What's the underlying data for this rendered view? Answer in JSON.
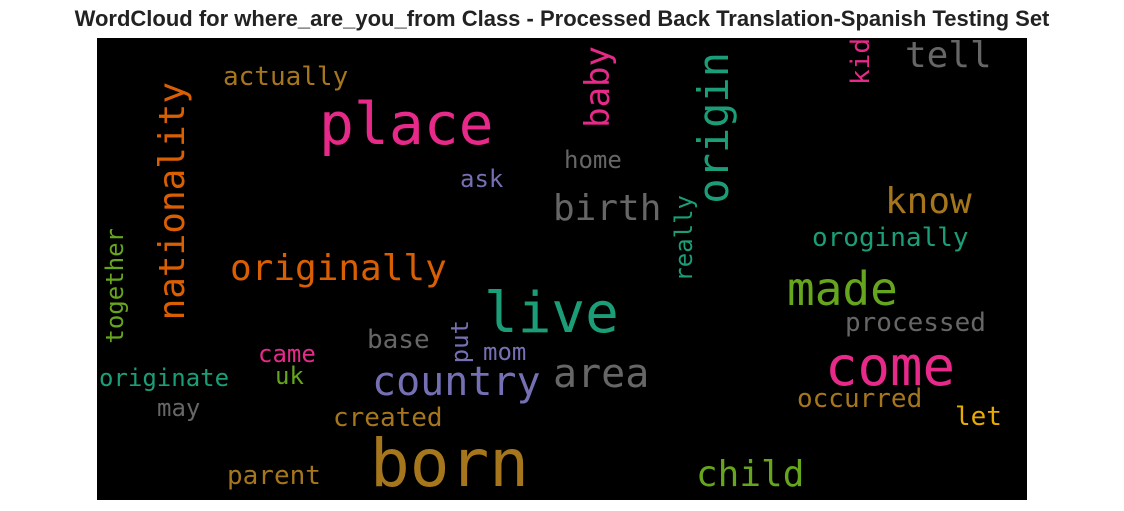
{
  "title": "WordCloud for where_are_you_from Class - Processed Back Translation-Spanish Testing Set",
  "chart_data": {
    "type": "wordcloud",
    "background": "#000000",
    "words": [
      {
        "text": "place",
        "color": "#e7298a",
        "vertical": false
      },
      {
        "text": "born",
        "color": "#a6761d",
        "vertical": false
      },
      {
        "text": "live",
        "color": "#1b9e77",
        "vertical": false
      },
      {
        "text": "come",
        "color": "#e7298a",
        "vertical": false
      },
      {
        "text": "made",
        "color": "#66a61e",
        "vertical": false
      },
      {
        "text": "country",
        "color": "#7570b3",
        "vertical": false
      },
      {
        "text": "area",
        "color": "#666666",
        "vertical": false
      },
      {
        "text": "origin",
        "color": "#1b9e77",
        "vertical": true
      },
      {
        "text": "nationality",
        "color": "#d95f02",
        "vertical": true
      },
      {
        "text": "originally",
        "color": "#d95f02",
        "vertical": false
      },
      {
        "text": "birth",
        "color": "#666666",
        "vertical": false
      },
      {
        "text": "child",
        "color": "#66a61e",
        "vertical": false
      },
      {
        "text": "know",
        "color": "#a6761d",
        "vertical": false
      },
      {
        "text": "tell",
        "color": "#666666",
        "vertical": false
      },
      {
        "text": "baby",
        "color": "#e7298a",
        "vertical": true
      },
      {
        "text": "actually",
        "color": "#a6761d",
        "vertical": false
      },
      {
        "text": "home",
        "color": "#666666",
        "vertical": false
      },
      {
        "text": "ask",
        "color": "#7570b3",
        "vertical": false
      },
      {
        "text": "kid",
        "color": "#e7298a",
        "vertical": true
      },
      {
        "text": "oroginally",
        "color": "#1b9e77",
        "vertical": false
      },
      {
        "text": "really",
        "color": "#1b9e77",
        "vertical": true
      },
      {
        "text": "together",
        "color": "#66a61e",
        "vertical": true
      },
      {
        "text": "processed",
        "color": "#666666",
        "vertical": false
      },
      {
        "text": "base",
        "color": "#666666",
        "vertical": false
      },
      {
        "text": "put",
        "color": "#7570b3",
        "vertical": true
      },
      {
        "text": "mom",
        "color": "#7570b3",
        "vertical": false
      },
      {
        "text": "came",
        "color": "#e7298a",
        "vertical": false
      },
      {
        "text": "originate",
        "color": "#1b9e77",
        "vertical": false
      },
      {
        "text": "uk",
        "color": "#66a61e",
        "vertical": false
      },
      {
        "text": "may",
        "color": "#666666",
        "vertical": false
      },
      {
        "text": "created",
        "color": "#a6761d",
        "vertical": false
      },
      {
        "text": "occurred",
        "color": "#a6761d",
        "vertical": false
      },
      {
        "text": "let",
        "color": "#e6ab02",
        "vertical": false
      },
      {
        "text": "parent",
        "color": "#a6761d",
        "vertical": false
      }
    ]
  }
}
